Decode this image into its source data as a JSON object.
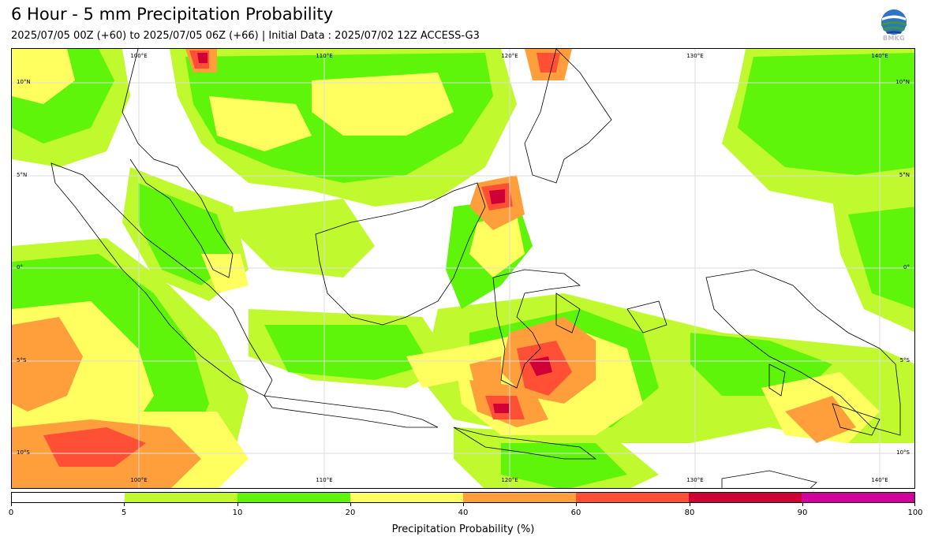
{
  "header": {
    "title": "6 Hour - 5 mm Precipitation Probability",
    "subtitle": "2025/07/05 00Z (+60) to 2025/07/05 06Z (+66) | Initial Data : 2025/07/02 12Z ACCESS-G3"
  },
  "logo": {
    "text": "BMKG",
    "colors": {
      "globe": "#2f73c9",
      "band": "#3a9a3a",
      "dark": "#1c3e7a"
    }
  },
  "map": {
    "lon_labels_top": [
      "100°E",
      "110°E",
      "120°E",
      "130°E",
      "140°E"
    ],
    "lon_labels_bottom": [
      "100°E",
      "110°E",
      "120°E",
      "130°E",
      "140°E"
    ],
    "lat_labels_left": [
      "10°N",
      "5°N",
      "0°",
      "5°S",
      "10°S"
    ],
    "lat_labels_right": [
      "10°N",
      "5°N",
      "0°",
      "5°S",
      "10°S"
    ]
  },
  "colorbar": {
    "segments": [
      {
        "range": "0-5",
        "color": "#ffffff"
      },
      {
        "range": "5-10",
        "color": "#c0fa2e"
      },
      {
        "range": "10-20",
        "color": "#5ff50a"
      },
      {
        "range": "20-40",
        "color": "#ffff5f"
      },
      {
        "range": "40-60",
        "color": "#ff9f3c"
      },
      {
        "range": "60-80",
        "color": "#ff5036"
      },
      {
        "range": "80-90",
        "color": "#d00037"
      },
      {
        "range": "90-100",
        "color": "#d0009c"
      }
    ],
    "tick_labels": [
      "0",
      "5",
      "10",
      "20",
      "40",
      "60",
      "80",
      "90",
      "100"
    ],
    "label": "Precipitation Probability (%)"
  }
}
